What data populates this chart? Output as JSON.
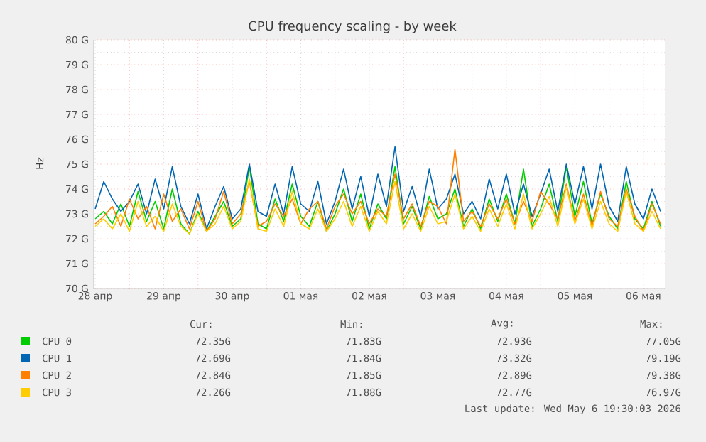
{
  "chart_data": {
    "type": "line",
    "title": "CPU frequency scaling - by week",
    "ylabel": "Hz",
    "x": [
      "2026-04-28T12:00",
      "2026-04-28T15:00",
      "2026-04-28T18:00",
      "2026-04-28T21:00",
      "2026-04-29T00:00",
      "2026-04-29T03:00",
      "2026-04-29T06:00",
      "2026-04-29T09:00",
      "2026-04-29T12:00",
      "2026-04-29T15:00",
      "2026-04-29T18:00",
      "2026-04-29T21:00",
      "2026-04-30T00:00",
      "2026-04-30T03:00",
      "2026-04-30T06:00",
      "2026-04-30T09:00",
      "2026-04-30T12:00",
      "2026-04-30T15:00",
      "2026-04-30T18:00",
      "2026-04-30T21:00",
      "2026-05-01T00:00",
      "2026-05-01T03:00",
      "2026-05-01T06:00",
      "2026-05-01T09:00",
      "2026-05-01T12:00",
      "2026-05-01T15:00",
      "2026-05-01T18:00",
      "2026-05-01T21:00",
      "2026-05-02T00:00",
      "2026-05-02T03:00",
      "2026-05-02T06:00",
      "2026-05-02T09:00",
      "2026-05-02T12:00",
      "2026-05-02T15:00",
      "2026-05-02T18:00",
      "2026-05-02T21:00",
      "2026-05-03T00:00",
      "2026-05-03T03:00",
      "2026-05-03T06:00",
      "2026-05-03T09:00",
      "2026-05-03T12:00",
      "2026-05-03T15:00",
      "2026-05-03T18:00",
      "2026-05-03T21:00",
      "2026-05-04T00:00",
      "2026-05-04T03:00",
      "2026-05-04T06:00",
      "2026-05-04T09:00",
      "2026-05-04T12:00",
      "2026-05-04T15:00",
      "2026-05-04T18:00",
      "2026-05-04T21:00",
      "2026-05-05T00:00",
      "2026-05-05T03:00",
      "2026-05-05T06:00",
      "2026-05-05T09:00",
      "2026-05-05T12:00",
      "2026-05-05T15:00",
      "2026-05-05T18:00",
      "2026-05-05T21:00",
      "2026-05-06T00:00",
      "2026-05-06T03:00",
      "2026-05-06T06:00",
      "2026-05-06T09:00",
      "2026-05-06T12:00",
      "2026-05-06T15:00",
      "2026-05-06T18:00"
    ],
    "series": [
      {
        "name": "CPU 0",
        "color": "#00cc00",
        "values": [
          72.8,
          73.1,
          72.6,
          73.4,
          72.5,
          73.9,
          72.7,
          73.5,
          72.4,
          74.0,
          72.6,
          72.2,
          73.1,
          72.3,
          72.9,
          73.5,
          72.5,
          72.8,
          74.9,
          72.6,
          72.4,
          73.6,
          72.7,
          74.2,
          72.9,
          72.5,
          73.5,
          72.3,
          73.0,
          74.0,
          72.7,
          73.8,
          72.4,
          73.4,
          72.8,
          74.9,
          72.6,
          73.3,
          72.4,
          73.7,
          72.8,
          73.0,
          74.0,
          72.5,
          73.2,
          72.4,
          73.6,
          72.7,
          73.8,
          72.6,
          74.8,
          72.5,
          73.2,
          74.2,
          72.7,
          74.9,
          72.9,
          74.3,
          72.6,
          73.8,
          72.9,
          72.4,
          74.3,
          72.8,
          72.4,
          73.5,
          72.5
        ]
      },
      {
        "name": "CPU 1",
        "color": "#0066b3",
        "values": [
          73.2,
          74.3,
          73.6,
          73.1,
          73.5,
          74.2,
          73.0,
          74.4,
          73.2,
          74.9,
          73.3,
          72.6,
          73.8,
          72.4,
          73.3,
          74.1,
          72.8,
          73.2,
          75.0,
          73.1,
          72.9,
          74.2,
          73.0,
          74.9,
          73.4,
          73.1,
          74.3,
          72.6,
          73.5,
          74.8,
          73.2,
          74.5,
          72.9,
          74.6,
          73.3,
          75.7,
          73.1,
          74.1,
          72.9,
          74.8,
          73.2,
          73.6,
          74.6,
          73.0,
          73.5,
          72.8,
          74.4,
          73.2,
          74.6,
          73.0,
          74.2,
          72.9,
          73.8,
          74.8,
          73.1,
          75.0,
          73.4,
          74.9,
          73.2,
          75.0,
          73.3,
          72.7,
          74.9,
          73.4,
          72.8,
          74.0,
          73.1
        ]
      },
      {
        "name": "CPU 2",
        "color": "#ff8000",
        "values": [
          72.6,
          72.9,
          73.3,
          72.5,
          73.6,
          72.8,
          73.3,
          72.4,
          73.8,
          72.7,
          73.2,
          72.4,
          73.5,
          72.3,
          72.8,
          73.9,
          72.6,
          73.0,
          74.3,
          72.5,
          72.7,
          73.4,
          72.9,
          73.6,
          72.6,
          73.2,
          73.5,
          72.4,
          73.3,
          73.8,
          73.0,
          73.5,
          72.6,
          73.2,
          72.9,
          74.6,
          72.8,
          73.4,
          72.5,
          73.5,
          73.3,
          72.6,
          75.6,
          72.7,
          73.1,
          72.5,
          73.4,
          72.8,
          73.6,
          72.6,
          73.5,
          72.7,
          73.9,
          73.4,
          72.8,
          74.2,
          72.7,
          73.8,
          72.5,
          73.9,
          72.8,
          72.5,
          74.0,
          72.9,
          72.3,
          73.4,
          72.6
        ]
      },
      {
        "name": "CPU 3",
        "color": "#ffcc00",
        "values": [
          72.5,
          72.8,
          72.4,
          73.0,
          72.3,
          73.5,
          72.5,
          72.9,
          72.3,
          73.4,
          72.5,
          72.2,
          73.0,
          72.3,
          72.6,
          73.3,
          72.4,
          72.7,
          74.4,
          72.4,
          72.3,
          73.2,
          72.5,
          73.9,
          72.6,
          72.4,
          73.2,
          72.3,
          72.8,
          73.5,
          72.5,
          73.3,
          72.3,
          73.1,
          72.6,
          74.3,
          72.4,
          73.0,
          72.3,
          73.3,
          72.6,
          72.7,
          73.8,
          72.4,
          72.9,
          72.3,
          73.2,
          72.5,
          73.4,
          72.4,
          73.8,
          72.4,
          73.0,
          73.7,
          72.5,
          74.1,
          72.6,
          73.6,
          72.4,
          73.5,
          72.6,
          72.3,
          73.9,
          72.6,
          72.3,
          73.1,
          72.4
        ]
      }
    ],
    "xlim": [
      "2026-04-28T11:30",
      "2026-05-06T19:30"
    ],
    "xticks": [
      {
        "value": "2026-04-28T12:00",
        "label": "28 апр"
      },
      {
        "value": "2026-04-29T12:00",
        "label": "29 апр"
      },
      {
        "value": "2026-04-30T12:00",
        "label": "30 апр"
      },
      {
        "value": "2026-05-01T12:00",
        "label": "01 мая"
      },
      {
        "value": "2026-05-02T12:00",
        "label": "02 мая"
      },
      {
        "value": "2026-05-03T12:00",
        "label": "03 мая"
      },
      {
        "value": "2026-05-04T12:00",
        "label": "04 мая"
      },
      {
        "value": "2026-05-05T12:00",
        "label": "05 мая"
      },
      {
        "value": "2026-05-06T12:00",
        "label": "06 мая"
      }
    ],
    "ylim": [
      70,
      80
    ],
    "yticks": [
      {
        "value": 70,
        "label": "70 G"
      },
      {
        "value": 71,
        "label": "71 G"
      },
      {
        "value": 72,
        "label": "72 G"
      },
      {
        "value": 73,
        "label": "73 G"
      },
      {
        "value": 74,
        "label": "74 G"
      },
      {
        "value": 75,
        "label": "75 G"
      },
      {
        "value": 76,
        "label": "76 G"
      },
      {
        "value": 77,
        "label": "77 G"
      },
      {
        "value": 78,
        "label": "78 G"
      },
      {
        "value": 79,
        "label": "79 G"
      },
      {
        "value": 80,
        "label": "80 G"
      }
    ],
    "grid": true,
    "legend": "bottom",
    "marker": "none",
    "line_style": "solid",
    "annotations": [
      "Cur:",
      "Min:",
      "Avg:",
      "Max:",
      "72.35G",
      "71.83G",
      "72.93G",
      "77.05G",
      "72.69G",
      "71.84G",
      "73.32G",
      "79.19G",
      "72.84G",
      "71.85G",
      "72.89G",
      "79.38G",
      "72.26G",
      "71.88G",
      "72.77G",
      "76.97G",
      "Last update: Wed May  6 19:30:03 2026"
    ]
  }
}
